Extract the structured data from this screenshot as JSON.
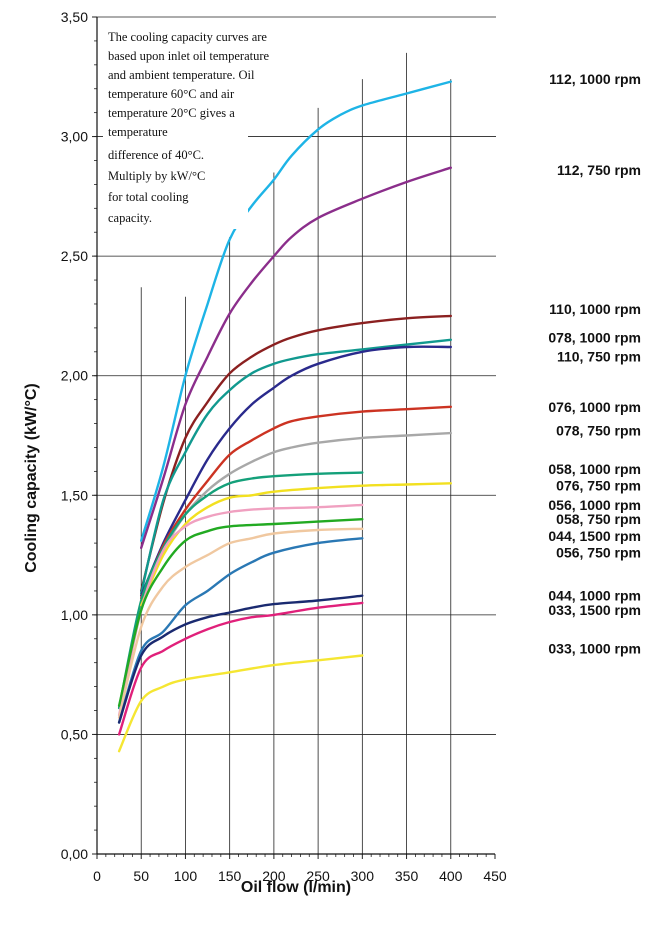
{
  "chart_data": {
    "type": "line",
    "xlabel": "Oil flow (l/min)",
    "ylabel": "Cooling capacity (kW/°C)",
    "xlim": [
      0,
      450
    ],
    "ylim": [
      0,
      3.5
    ],
    "x_ticks": [
      "0",
      "50",
      "100",
      "150",
      "200",
      "250",
      "300",
      "350",
      "400",
      "450"
    ],
    "y_ticks": [
      "0,00",
      "0,50",
      "1,00",
      "1,50",
      "2,00",
      "2,50",
      "3,00",
      "3,50"
    ],
    "grid": true,
    "annotation_lines": [
      "The cooling capacity curves are",
      "based upon inlet oil temperature",
      "and ambient temperature. Oil",
      "temperature 60°C and air",
      "temperature 20°C gives a",
      "temperature",
      "difference of 40°C.",
      "Multiply by kW/°C",
      "for total cooling",
      "capacity."
    ],
    "series": [
      {
        "name": "112, 1000 rpm",
        "color": "#1eb4e6",
        "label_y": 3.24,
        "points": [
          [
            50,
            1.31
          ],
          [
            75,
            1.62
          ],
          [
            100,
            2.0
          ],
          [
            125,
            2.3
          ],
          [
            150,
            2.57
          ],
          [
            175,
            2.71
          ],
          [
            200,
            2.82
          ],
          [
            220,
            2.92
          ],
          [
            250,
            3.03
          ],
          [
            275,
            3.09
          ],
          [
            300,
            3.13
          ],
          [
            350,
            3.18
          ],
          [
            400,
            3.23
          ]
        ]
      },
      {
        "name": "112, 750 rpm",
        "color": "#8b2e8b",
        "label_y": 2.86,
        "points": [
          [
            50,
            1.28
          ],
          [
            75,
            1.57
          ],
          [
            100,
            1.88
          ],
          [
            125,
            2.08
          ],
          [
            150,
            2.26
          ],
          [
            175,
            2.39
          ],
          [
            200,
            2.5
          ],
          [
            220,
            2.58
          ],
          [
            250,
            2.66
          ],
          [
            300,
            2.74
          ],
          [
            350,
            2.81
          ],
          [
            400,
            2.87
          ]
        ]
      },
      {
        "name": "110, 1000 rpm",
        "color": "#8b2020",
        "label_y": 2.28,
        "points": [
          [
            50,
            1.1
          ],
          [
            75,
            1.47
          ],
          [
            100,
            1.74
          ],
          [
            125,
            1.89
          ],
          [
            150,
            2.01
          ],
          [
            175,
            2.08
          ],
          [
            200,
            2.13
          ],
          [
            220,
            2.16
          ],
          [
            250,
            2.19
          ],
          [
            300,
            2.22
          ],
          [
            350,
            2.24
          ],
          [
            400,
            2.25
          ]
        ]
      },
      {
        "name": "078, 1000 rpm",
        "color": "#11998f",
        "label_y": 2.16,
        "points": [
          [
            50,
            1.09
          ],
          [
            75,
            1.48
          ],
          [
            100,
            1.68
          ],
          [
            125,
            1.84
          ],
          [
            150,
            1.94
          ],
          [
            175,
            2.01
          ],
          [
            200,
            2.05
          ],
          [
            220,
            2.07
          ],
          [
            250,
            2.09
          ],
          [
            300,
            2.11
          ],
          [
            350,
            2.13
          ],
          [
            400,
            2.15
          ]
        ]
      },
      {
        "name": "110, 750 rpm",
        "color": "#2a2a8c",
        "label_y": 2.08,
        "points": [
          [
            50,
            1.08
          ],
          [
            75,
            1.3
          ],
          [
            100,
            1.48
          ],
          [
            125,
            1.65
          ],
          [
            150,
            1.78
          ],
          [
            175,
            1.88
          ],
          [
            200,
            1.95
          ],
          [
            220,
            2.0
          ],
          [
            250,
            2.05
          ],
          [
            300,
            2.1
          ],
          [
            350,
            2.12
          ],
          [
            400,
            2.12
          ]
        ]
      },
      {
        "name": "076, 1000 rpm",
        "color": "#cc3322",
        "label_y": 1.87,
        "points": [
          [
            50,
            1.07
          ],
          [
            75,
            1.29
          ],
          [
            100,
            1.44
          ],
          [
            125,
            1.56
          ],
          [
            150,
            1.67
          ],
          [
            175,
            1.73
          ],
          [
            200,
            1.78
          ],
          [
            220,
            1.81
          ],
          [
            250,
            1.83
          ],
          [
            300,
            1.85
          ],
          [
            350,
            1.86
          ],
          [
            400,
            1.87
          ]
        ]
      },
      {
        "name": "078, 750 rpm",
        "color": "#a8a8a8",
        "label_y": 1.77,
        "points": [
          [
            50,
            1.06
          ],
          [
            75,
            1.27
          ],
          [
            100,
            1.42
          ],
          [
            125,
            1.52
          ],
          [
            150,
            1.59
          ],
          [
            175,
            1.64
          ],
          [
            200,
            1.68
          ],
          [
            220,
            1.7
          ],
          [
            250,
            1.72
          ],
          [
            300,
            1.74
          ],
          [
            350,
            1.75
          ],
          [
            400,
            1.76
          ]
        ]
      },
      {
        "name": "058, 1000 rpm",
        "color": "#14a07a",
        "label_y": 1.61,
        "points": [
          [
            25,
            0.61
          ],
          [
            50,
            1.06
          ],
          [
            75,
            1.28
          ],
          [
            100,
            1.42
          ],
          [
            125,
            1.5
          ],
          [
            150,
            1.55
          ],
          [
            175,
            1.57
          ],
          [
            200,
            1.58
          ],
          [
            250,
            1.59
          ],
          [
            300,
            1.595
          ]
        ]
      },
      {
        "name": "076, 750 rpm",
        "color": "#f2e020",
        "label_y": 1.54,
        "points": [
          [
            50,
            1.04
          ],
          [
            75,
            1.25
          ],
          [
            100,
            1.38
          ],
          [
            125,
            1.45
          ],
          [
            150,
            1.49
          ],
          [
            175,
            1.5
          ],
          [
            200,
            1.515
          ],
          [
            250,
            1.53
          ],
          [
            300,
            1.54
          ],
          [
            350,
            1.545
          ],
          [
            400,
            1.55
          ]
        ]
      },
      {
        "name": "056, 1000 rpm",
        "color": "#f0a0c0",
        "label_y": 1.46,
        "points": [
          [
            25,
            0.58
          ],
          [
            50,
            1.02
          ],
          [
            75,
            1.27
          ],
          [
            100,
            1.37
          ],
          [
            125,
            1.41
          ],
          [
            150,
            1.43
          ],
          [
            175,
            1.44
          ],
          [
            200,
            1.445
          ],
          [
            250,
            1.45
          ],
          [
            300,
            1.46
          ]
        ]
      },
      {
        "name": "058, 750 rpm",
        "color": "#22aa22",
        "label_y": 1.4,
        "points": [
          [
            25,
            0.62
          ],
          [
            50,
            1.02
          ],
          [
            75,
            1.2
          ],
          [
            100,
            1.31
          ],
          [
            125,
            1.35
          ],
          [
            150,
            1.37
          ],
          [
            200,
            1.38
          ],
          [
            250,
            1.39
          ],
          [
            300,
            1.4
          ]
        ]
      },
      {
        "name": "044, 1500 rpm",
        "color": "#f0c8a0",
        "label_y": 1.33,
        "points": [
          [
            25,
            0.57
          ],
          [
            50,
            0.95
          ],
          [
            75,
            1.12
          ],
          [
            100,
            1.2
          ],
          [
            125,
            1.25
          ],
          [
            150,
            1.3
          ],
          [
            175,
            1.32
          ],
          [
            200,
            1.34
          ],
          [
            250,
            1.355
          ],
          [
            300,
            1.36
          ]
        ]
      },
      {
        "name": "056, 750 rpm",
        "color": "#2a78b4",
        "label_y": 1.26,
        "points": [
          [
            25,
            0.55
          ],
          [
            50,
            0.85
          ],
          [
            75,
            0.93
          ],
          [
            100,
            1.04
          ],
          [
            125,
            1.1
          ],
          [
            150,
            1.17
          ],
          [
            175,
            1.22
          ],
          [
            200,
            1.26
          ],
          [
            250,
            1.3
          ],
          [
            300,
            1.32
          ]
        ]
      },
      {
        "name": "044, 1000 rpm",
        "color": "#1a2a70",
        "label_y": 1.08,
        "points": [
          [
            25,
            0.55
          ],
          [
            50,
            0.83
          ],
          [
            75,
            0.91
          ],
          [
            100,
            0.96
          ],
          [
            125,
            0.99
          ],
          [
            150,
            1.01
          ],
          [
            175,
            1.03
          ],
          [
            200,
            1.045
          ],
          [
            250,
            1.06
          ],
          [
            300,
            1.08
          ]
        ]
      },
      {
        "name": "033, 1500 rpm",
        "color": "#e0207a",
        "label_y": 1.02,
        "points": [
          [
            25,
            0.5
          ],
          [
            50,
            0.78
          ],
          [
            75,
            0.85
          ],
          [
            100,
            0.9
          ],
          [
            125,
            0.94
          ],
          [
            150,
            0.97
          ],
          [
            175,
            0.99
          ],
          [
            200,
            1.0
          ],
          [
            250,
            1.03
          ],
          [
            300,
            1.05
          ]
        ]
      },
      {
        "name": "033, 1000 rpm",
        "color": "#f5e632",
        "label_y": 0.86,
        "points": [
          [
            25,
            0.43
          ],
          [
            50,
            0.64
          ],
          [
            75,
            0.7
          ],
          [
            100,
            0.73
          ],
          [
            150,
            0.76
          ],
          [
            200,
            0.79
          ],
          [
            250,
            0.81
          ],
          [
            300,
            0.83
          ]
        ]
      }
    ]
  }
}
